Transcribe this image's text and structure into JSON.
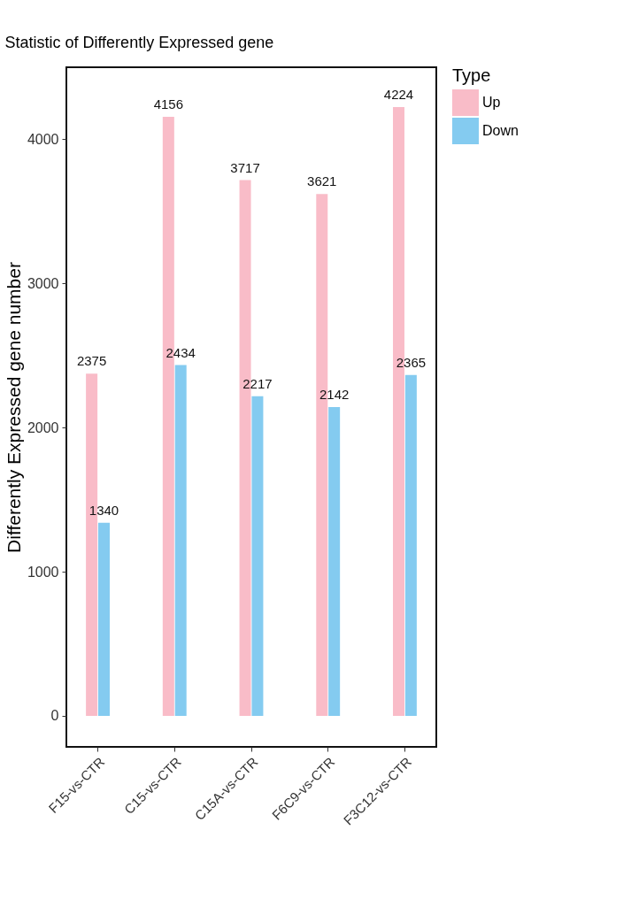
{
  "chart_data": {
    "type": "bar",
    "title": "Statistic of Differently Expressed gene",
    "ylabel": "Differently Expressed gene number",
    "legend_title": "Type",
    "categories": [
      "F15-vs-CTR",
      "C15-vs-CTR",
      "C15A-vs-CTR",
      "F6C9-vs-CTR",
      "F3C12-vs-CTR"
    ],
    "series": [
      {
        "name": "Up",
        "color": "#f9bcc8",
        "values": [
          2375,
          4156,
          3717,
          3621,
          4224
        ]
      },
      {
        "name": "Down",
        "color": "#84cbf0",
        "values": [
          1340,
          2434,
          2217,
          2142,
          2365
        ]
      }
    ],
    "ylim": [
      -215,
      4500
    ],
    "yticks": [
      0,
      1000,
      2000,
      3000,
      4000
    ],
    "grid": false,
    "legend": "right",
    "data_labels": true
  }
}
